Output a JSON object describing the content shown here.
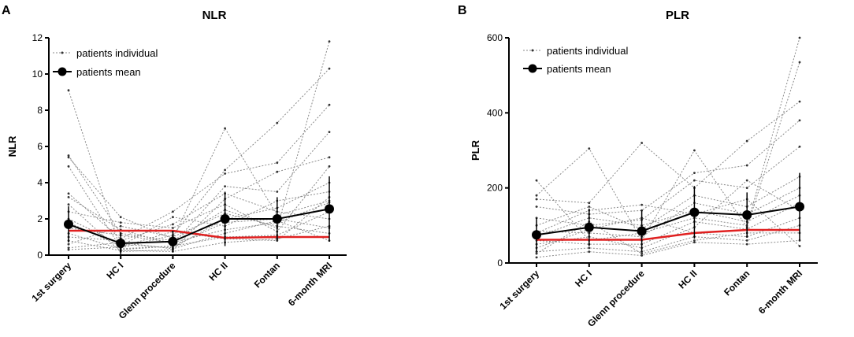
{
  "panels": [
    {
      "letter": "A",
      "chart_data": {
        "type": "line",
        "title": "NLR",
        "ylabel": "NLR",
        "xlabel": "",
        "categories": [
          "1st surgery",
          "HC I",
          "Glenn procedure",
          "HC II",
          "Fontan",
          "6-month MRI"
        ],
        "ylim": [
          0,
          12
        ],
        "yticks": [
          0,
          2,
          4,
          6,
          8,
          10,
          12
        ],
        "legend": {
          "position": "top-left",
          "individual_label": "patients individual",
          "mean_label": "patients mean"
        },
        "series": [
          {
            "name": "patients mean",
            "color": "#000000",
            "values": [
              1.7,
              0.65,
              0.75,
              2.0,
              2.0,
              2.55
            ],
            "errors": [
              1.0,
              0.6,
              0.6,
              1.5,
              1.2,
              1.8
            ]
          },
          {
            "name": "red line",
            "color": "#e02020",
            "values": [
              1.35,
              1.35,
              1.35,
              0.95,
              1.0,
              1.0
            ]
          }
        ],
        "individual_series": [
          [
            9.1,
            0.3,
            0.5,
            1.8,
            2.0,
            1.5
          ],
          [
            5.5,
            1.2,
            0.8,
            2.5,
            1.5,
            11.8
          ],
          [
            5.4,
            2.1,
            0.9,
            7.0,
            2.2,
            3.0
          ],
          [
            4.9,
            0.4,
            1.1,
            4.7,
            7.3,
            10.3
          ],
          [
            3.4,
            0.9,
            2.4,
            4.5,
            5.1,
            8.3
          ],
          [
            3.2,
            1.4,
            0.6,
            3.8,
            3.5,
            6.8
          ],
          [
            2.8,
            0.2,
            0.3,
            3.1,
            4.6,
            5.4
          ],
          [
            2.4,
            1.8,
            1.5,
            2.8,
            1.3,
            4.9
          ],
          [
            2.0,
            0.6,
            0.4,
            2.0,
            2.6,
            4.0
          ],
          [
            1.8,
            0.5,
            2.1,
            1.6,
            3.0,
            3.5
          ],
          [
            1.5,
            1.1,
            0.7,
            1.4,
            1.8,
            2.9
          ],
          [
            1.2,
            0.35,
            0.5,
            1.0,
            1.1,
            2.4
          ],
          [
            1.0,
            0.8,
            1.7,
            3.4,
            2.4,
            2.0
          ],
          [
            0.8,
            0.25,
            0.2,
            0.7,
            0.9,
            1.6
          ],
          [
            0.6,
            1.6,
            1.0,
            2.3,
            1.6,
            1.2
          ],
          [
            0.4,
            0.7,
            0.35,
            1.2,
            1.9,
            0.8
          ],
          [
            0.3,
            0.45,
            1.3,
            0.9,
            0.8,
            3.2
          ]
        ]
      }
    },
    {
      "letter": "B",
      "chart_data": {
        "type": "line",
        "title": "PLR",
        "ylabel": "PLR",
        "xlabel": "",
        "categories": [
          "1st surgery",
          "HC I",
          "Glenn procedure",
          "HC II",
          "Fontan",
          "6-month MRI"
        ],
        "ylim": [
          0,
          600
        ],
        "yticks": [
          0,
          200,
          400,
          600
        ],
        "legend": {
          "position": "top-left",
          "individual_label": "patients individual",
          "mean_label": "patients mean"
        },
        "series": [
          {
            "name": "patients mean",
            "color": "#000000",
            "values": [
              75,
              95,
              85,
              135,
              128,
              150
            ],
            "errors": [
              45,
              50,
              55,
              70,
              60,
              90
            ]
          },
          {
            "name": "red line",
            "color": "#e02020",
            "values": [
              62,
              62,
              62,
              80,
              88,
              88
            ]
          }
        ],
        "individual_series": [
          [
            220,
            60,
            80,
            120,
            100,
            600
          ],
          [
            180,
            305,
            60,
            300,
            95,
            535
          ],
          [
            170,
            160,
            320,
            200,
            325,
            430
          ],
          [
            150,
            130,
            140,
            240,
            260,
            380
          ],
          [
            120,
            100,
            115,
            220,
            200,
            310
          ],
          [
            100,
            150,
            90,
            180,
            150,
            230
          ],
          [
            85,
            80,
            70,
            160,
            130,
            200
          ],
          [
            70,
            120,
            100,
            140,
            110,
            180
          ],
          [
            60,
            50,
            50,
            110,
            90,
            160
          ],
          [
            50,
            70,
            40,
            95,
            220,
            140
          ],
          [
            40,
            90,
            120,
            80,
            70,
            120
          ],
          [
            30,
            40,
            30,
            70,
            60,
            100
          ],
          [
            25,
            110,
            25,
            60,
            80,
            80
          ],
          [
            15,
            30,
            20,
            55,
            50,
            60
          ],
          [
            80,
            140,
            155,
            130,
            170,
            45
          ]
        ]
      }
    }
  ]
}
